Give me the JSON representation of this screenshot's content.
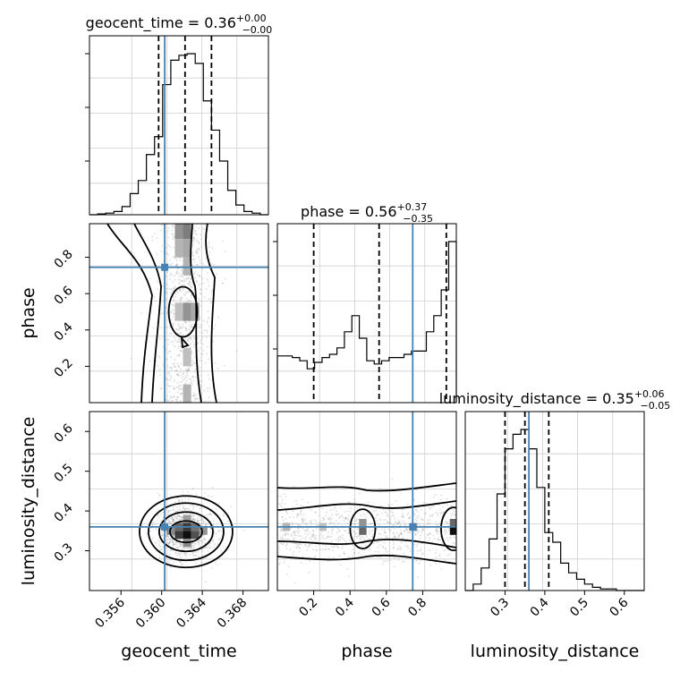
{
  "chart_data": {
    "type": "corner",
    "parameters": [
      "geocent_time",
      "phase",
      "luminosity_distance"
    ],
    "truth_color": "#4682b4",
    "titles": [
      {
        "param": "geocent_time",
        "main": "geocent_time = 0.36",
        "plus": "+0.00",
        "minus": "−0.00"
      },
      {
        "param": "phase",
        "main": "phase = 0.56",
        "plus": "+0.37",
        "minus": "−0.35"
      },
      {
        "param": "luminosity_distance",
        "main": "luminosity_distance = 0.35",
        "plus": "+0.06",
        "minus": "−0.05"
      }
    ],
    "ranges": {
      "geocent_time": [
        0.3529,
        0.3705
      ],
      "phase": [
        0.0,
        0.985
      ],
      "luminosity_distance": [
        0.2,
        0.65
      ]
    },
    "ticks": {
      "geocent_time": {
        "values": [
          0.356,
          0.36,
          0.364,
          0.368
        ],
        "labels": [
          "0.356",
          "0.360",
          "0.364",
          "0.368"
        ]
      },
      "phase_x": {
        "values": [
          0.2,
          0.4,
          0.6,
          0.8
        ],
        "labels": [
          "0.2",
          "0.4",
          "0.6",
          "0.8"
        ]
      },
      "phase_y": {
        "values": [
          0.2,
          0.4,
          0.6,
          0.8
        ],
        "labels": [
          "0.2",
          "0.4",
          "0.6",
          "0.8"
        ]
      },
      "luminosity_distance_x": {
        "values": [
          0.3,
          0.4,
          0.5,
          0.6
        ],
        "labels": [
          "0.3",
          "0.4",
          "0.5",
          "0.6"
        ]
      },
      "luminosity_distance_y": {
        "values": [
          0.3,
          0.4,
          0.5,
          0.6
        ],
        "labels": [
          "0.3",
          "0.4",
          "0.5",
          "0.6"
        ]
      }
    },
    "truths": {
      "geocent_time": 0.3603,
      "phase": 0.745,
      "luminosity_distance": 0.36
    },
    "quantiles": {
      "geocent_time": [
        0.3597,
        0.3623,
        0.3649
      ],
      "phase": [
        0.2,
        0.56,
        0.93
      ],
      "luminosity_distance": [
        0.3,
        0.35,
        0.41
      ]
    },
    "histograms": {
      "geocent_time": {
        "edges": [
          0.3529,
          0.3537,
          0.3545,
          0.3553,
          0.3561,
          0.3569,
          0.3577,
          0.3585,
          0.3593,
          0.3601,
          0.3609,
          0.3617,
          0.3625,
          0.3633,
          0.3641,
          0.3649,
          0.3657,
          0.3665,
          0.3673,
          0.3681,
          0.3689,
          0.3697,
          0.3705
        ],
        "counts": [
          0,
          0.5,
          1,
          2,
          5,
          13,
          21,
          37,
          48,
          80,
          95,
          98,
          99,
          93,
          70,
          52,
          33,
          15,
          6,
          2,
          1,
          0
        ]
      },
      "phase": {
        "edges": [
          0.0,
          0.041,
          0.082,
          0.123,
          0.164,
          0.205,
          0.246,
          0.287,
          0.328,
          0.369,
          0.41,
          0.451,
          0.492,
          0.533,
          0.574,
          0.615,
          0.656,
          0.697,
          0.738,
          0.779,
          0.82,
          0.861,
          0.902,
          0.943,
          0.985
        ],
        "counts": [
          29,
          29,
          28,
          26,
          21,
          25,
          28,
          30,
          34,
          44,
          54,
          40,
          26,
          24,
          26,
          28,
          28,
          30,
          32,
          32,
          44,
          54,
          70,
          100
        ]
      },
      "luminosity_distance": {
        "edges": [
          0.2,
          0.22,
          0.24,
          0.26,
          0.28,
          0.3,
          0.32,
          0.34,
          0.36,
          0.38,
          0.4,
          0.42,
          0.44,
          0.46,
          0.48,
          0.5,
          0.52,
          0.54,
          0.56,
          0.58,
          0.6,
          0.62,
          0.65
        ],
        "counts": [
          0,
          4,
          14,
          32,
          60,
          88,
          97,
          100,
          88,
          64,
          36,
          30,
          17,
          11,
          7,
          4,
          2,
          1,
          1,
          0,
          0,
          0
        ]
      }
    },
    "densities": {
      "phase_vs_geocent_time": {
        "center": [
          0.3623,
          0.5
        ],
        "cells": [
          {
            "x": 0.3617,
            "y": 0.95,
            "w": 0.4
          },
          {
            "x": 0.3625,
            "y": 0.95,
            "w": 0.5
          },
          {
            "x": 0.3617,
            "y": 0.85,
            "w": 0.25
          },
          {
            "x": 0.3625,
            "y": 0.85,
            "w": 0.3
          },
          {
            "x": 0.3625,
            "y": 0.75,
            "w": 0.25
          },
          {
            "x": 0.3625,
            "y": 0.5,
            "w": 0.4
          },
          {
            "x": 0.3633,
            "y": 0.5,
            "w": 0.3
          },
          {
            "x": 0.3617,
            "y": 0.5,
            "w": 0.2
          },
          {
            "x": 0.3625,
            "y": 0.25,
            "w": 0.2
          },
          {
            "x": 0.3625,
            "y": 0.05,
            "w": 0.25
          }
        ]
      },
      "luminosity_distance_vs_geocent_time": {
        "cells": [
          {
            "x": 0.3625,
            "y": 0.34,
            "w": 1.0
          },
          {
            "x": 0.3617,
            "y": 0.34,
            "w": 0.8
          },
          {
            "x": 0.3633,
            "y": 0.34,
            "w": 0.7
          },
          {
            "x": 0.3625,
            "y": 0.36,
            "w": 0.8
          },
          {
            "x": 0.3617,
            "y": 0.36,
            "w": 0.6
          },
          {
            "x": 0.3633,
            "y": 0.36,
            "w": 0.55
          },
          {
            "x": 0.3609,
            "y": 0.35,
            "w": 0.45
          },
          {
            "x": 0.3641,
            "y": 0.35,
            "w": 0.4
          },
          {
            "x": 0.3625,
            "y": 0.32,
            "w": 0.45
          },
          {
            "x": 0.3625,
            "y": 0.38,
            "w": 0.35
          }
        ]
      },
      "luminosity_distance_vs_phase": {
        "cells": [
          {
            "x": 0.47,
            "y": 0.35,
            "w": 0.6
          },
          {
            "x": 0.47,
            "y": 0.37,
            "w": 0.4
          },
          {
            "x": 0.97,
            "y": 0.35,
            "w": 1.0
          },
          {
            "x": 0.97,
            "y": 0.37,
            "w": 0.6
          },
          {
            "x": 0.75,
            "y": 0.36,
            "w": 0.35
          },
          {
            "x": 0.05,
            "y": 0.36,
            "w": 0.25
          },
          {
            "x": 0.25,
            "y": 0.36,
            "w": 0.2
          }
        ]
      }
    },
    "xlabels": [
      "geocent_time",
      "phase",
      "luminosity_distance"
    ],
    "ylabels": [
      "phase",
      "luminosity_distance"
    ]
  }
}
